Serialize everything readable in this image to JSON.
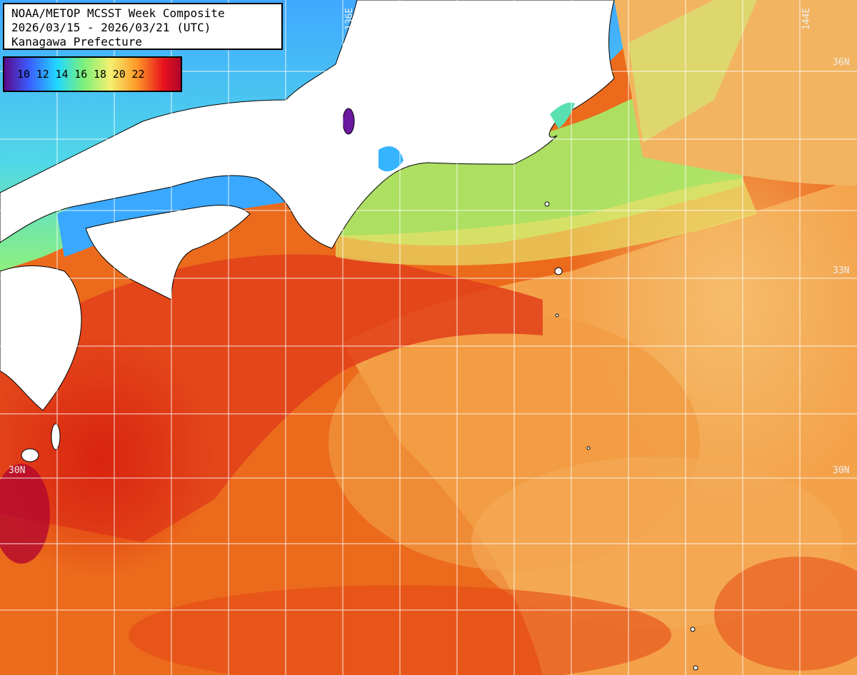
{
  "title": {
    "line1": "NOAA/METOP MCSST Week Composite",
    "line2": "2026/03/15 - 2026/03/21 (UTC)",
    "line3": "Kanagawa Prefecture"
  },
  "legend": {
    "labels": [
      "10",
      "12",
      "14",
      "16",
      "18",
      "20",
      "22"
    ],
    "colors": [
      "#5a0a8a",
      "#3a5cff",
      "#22d8ff",
      "#7cf07a",
      "#f4f070",
      "#ff9a28",
      "#e8141e",
      "#b0062a"
    ]
  },
  "grid": {
    "lat_labels": [
      "36N",
      "33N",
      "30N"
    ],
    "lon_labels": [
      "136E",
      "144E"
    ]
  },
  "colors": {
    "land": "#ffffff",
    "coast": "#000000",
    "grid": "#ffffff",
    "sst_cold": "#2a6cff",
    "sst_cool": "#56e6c0",
    "sst_mild": "#9cf06c",
    "sst_warm": "#f8b058",
    "sst_hot": "#e6401a"
  }
}
